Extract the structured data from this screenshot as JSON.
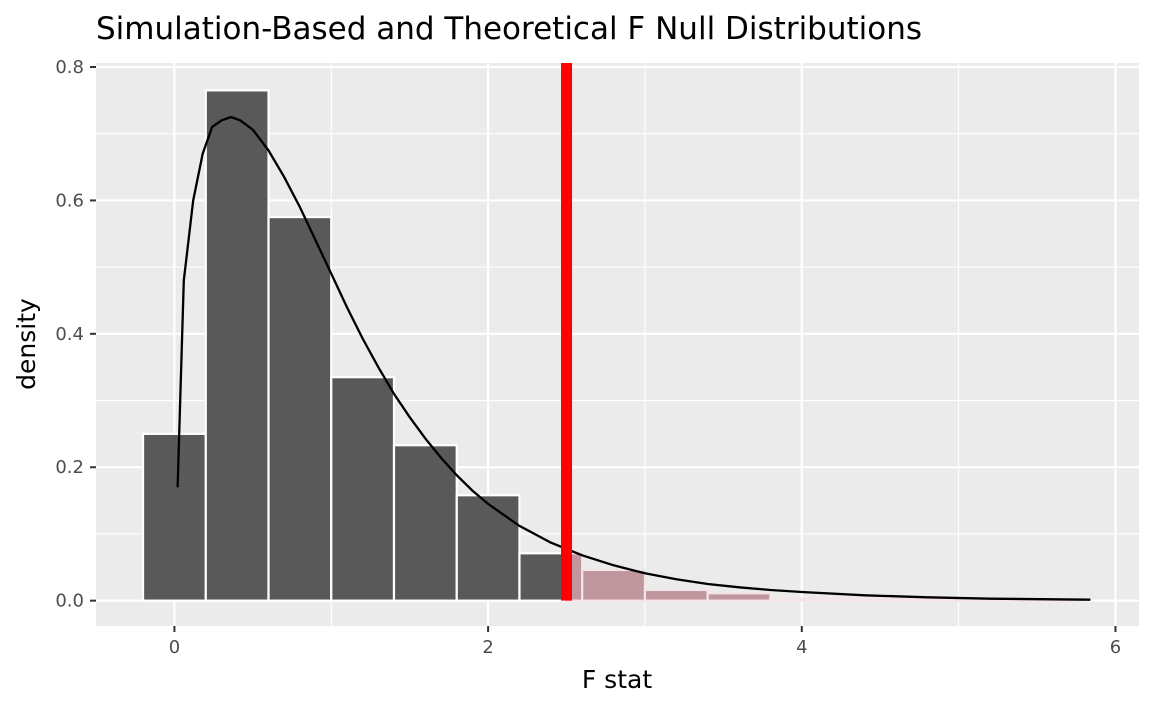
{
  "chart_data": {
    "type": "bar",
    "title": "Simulation-Based and Theoretical F Null Distributions",
    "xlabel": "F stat",
    "ylabel": "density",
    "xlim": [
      -0.5,
      6.15
    ],
    "ylim": [
      -0.038,
      0.806
    ],
    "x_ticks": [
      0,
      2,
      4,
      6
    ],
    "y_ticks": [
      0.0,
      0.2,
      0.4,
      0.6,
      0.8
    ],
    "y_tick_labels": [
      "0.0",
      "0.2",
      "0.4",
      "0.6",
      "0.8"
    ],
    "grid": true,
    "legend": "none",
    "observed_statistic": 2.5,
    "histogram": {
      "bin_width": 0.4,
      "bins": [
        {
          "x0": -0.2,
          "x1": 0.2,
          "density": 0.25,
          "shaded": false
        },
        {
          "x0": 0.2,
          "x1": 0.6,
          "density": 0.765,
          "shaded": false
        },
        {
          "x0": 0.6,
          "x1": 1.0,
          "density": 0.575,
          "shaded": false
        },
        {
          "x0": 1.0,
          "x1": 1.4,
          "density": 0.335,
          "shaded": false
        },
        {
          "x0": 1.4,
          "x1": 1.8,
          "density": 0.233,
          "shaded": false
        },
        {
          "x0": 1.8,
          "x1": 2.2,
          "density": 0.158,
          "shaded": false
        },
        {
          "x0": 2.2,
          "x1": 2.5,
          "density": 0.071,
          "shaded": false
        },
        {
          "x0": 2.5,
          "x1": 2.6,
          "density": 0.071,
          "shaded": true
        },
        {
          "x0": 2.6,
          "x1": 3.0,
          "density": 0.046,
          "shaded": true
        },
        {
          "x0": 3.0,
          "x1": 3.4,
          "density": 0.016,
          "shaded": true
        },
        {
          "x0": 3.4,
          "x1": 3.8,
          "density": 0.011,
          "shaded": true
        },
        {
          "x0": 3.8,
          "x1": 4.2,
          "density": 0.003,
          "shaded": true
        },
        {
          "x0": 4.2,
          "x1": 4.6,
          "density": 0.003,
          "shaded": true
        },
        {
          "x0": 4.6,
          "x1": 5.0,
          "density": 0.003,
          "shaded": true
        },
        {
          "x0": 5.0,
          "x1": 5.4,
          "density": 0.002,
          "shaded": true
        },
        {
          "x0": 5.4,
          "x1": 5.8,
          "density": 0.002,
          "shaded": true
        }
      ]
    },
    "theoretical_density": {
      "x": [
        0.02,
        0.06,
        0.12,
        0.18,
        0.24,
        0.3,
        0.36,
        0.42,
        0.5,
        0.6,
        0.7,
        0.8,
        0.9,
        1.0,
        1.1,
        1.2,
        1.3,
        1.4,
        1.5,
        1.6,
        1.7,
        1.8,
        1.9,
        2.0,
        2.2,
        2.4,
        2.6,
        2.8,
        3.0,
        3.2,
        3.4,
        3.6,
        3.8,
        4.0,
        4.4,
        4.8,
        5.2,
        5.6,
        5.84
      ],
      "y": [
        0.17,
        0.48,
        0.6,
        0.67,
        0.71,
        0.72,
        0.725,
        0.72,
        0.706,
        0.675,
        0.635,
        0.59,
        0.54,
        0.49,
        0.44,
        0.393,
        0.35,
        0.31,
        0.275,
        0.243,
        0.214,
        0.188,
        0.165,
        0.145,
        0.112,
        0.087,
        0.068,
        0.053,
        0.041,
        0.032,
        0.025,
        0.02,
        0.016,
        0.013,
        0.008,
        0.005,
        0.003,
        0.002,
        0.0015
      ]
    },
    "colors": {
      "panel_bg": "#ebebeb",
      "grid": "#ffffff",
      "bar_fill": "#595959",
      "bar_stroke": "#ffffff",
      "shaded_fill": "#c0979e",
      "shaded_stroke": "#f3e4e6",
      "curve": "#000000",
      "observed_line": "#ff0000"
    }
  }
}
